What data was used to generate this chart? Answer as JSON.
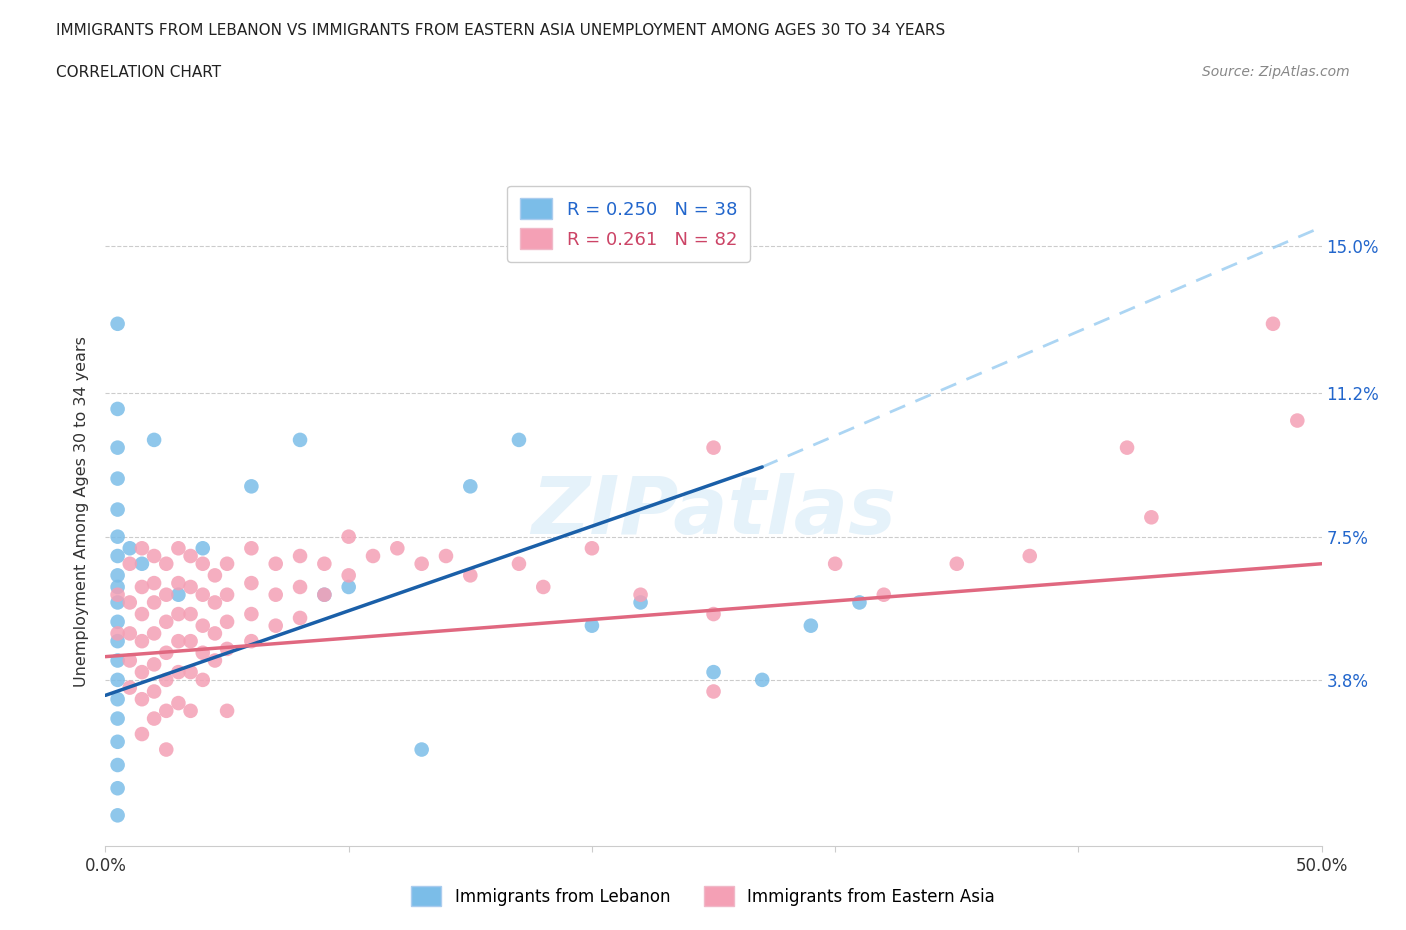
{
  "title_line1": "IMMIGRANTS FROM LEBANON VS IMMIGRANTS FROM EASTERN ASIA UNEMPLOYMENT AMONG AGES 30 TO 34 YEARS",
  "title_line2": "CORRELATION CHART",
  "source": "Source: ZipAtlas.com",
  "ylabel": "Unemployment Among Ages 30 to 34 years",
  "ytick_labels": [
    "3.8%",
    "7.5%",
    "11.2%",
    "15.0%"
  ],
  "ytick_values": [
    0.038,
    0.075,
    0.112,
    0.15
  ],
  "xmin": 0.0,
  "xmax": 0.5,
  "ymin": -0.005,
  "ymax": 0.168,
  "watermark": "ZIPatlas",
  "color_lebanon": "#7bbde8",
  "color_eastern": "#f4a0b5",
  "color_lebanon_line": "#1a5fa8",
  "color_eastern_line": "#e06880",
  "color_lebanon_dashed": "#90c8f0",
  "background": "#ffffff",
  "lebanon_scatter": [
    [
      0.005,
      0.13
    ],
    [
      0.005,
      0.108
    ],
    [
      0.005,
      0.098
    ],
    [
      0.005,
      0.09
    ],
    [
      0.005,
      0.082
    ],
    [
      0.005,
      0.075
    ],
    [
      0.005,
      0.07
    ],
    [
      0.005,
      0.065
    ],
    [
      0.005,
      0.062
    ],
    [
      0.005,
      0.058
    ],
    [
      0.005,
      0.053
    ],
    [
      0.005,
      0.048
    ],
    [
      0.005,
      0.043
    ],
    [
      0.005,
      0.038
    ],
    [
      0.005,
      0.033
    ],
    [
      0.005,
      0.028
    ],
    [
      0.005,
      0.022
    ],
    [
      0.005,
      0.016
    ],
    [
      0.005,
      0.01
    ],
    [
      0.005,
      0.003
    ],
    [
      0.01,
      0.072
    ],
    [
      0.015,
      0.068
    ],
    [
      0.02,
      0.1
    ],
    [
      0.03,
      0.06
    ],
    [
      0.04,
      0.072
    ],
    [
      0.06,
      0.088
    ],
    [
      0.08,
      0.1
    ],
    [
      0.09,
      0.06
    ],
    [
      0.1,
      0.062
    ],
    [
      0.13,
      0.02
    ],
    [
      0.15,
      0.088
    ],
    [
      0.17,
      0.1
    ],
    [
      0.2,
      0.052
    ],
    [
      0.22,
      0.058
    ],
    [
      0.25,
      0.04
    ],
    [
      0.27,
      0.038
    ],
    [
      0.29,
      0.052
    ],
    [
      0.31,
      0.058
    ]
  ],
  "eastern_scatter": [
    [
      0.005,
      0.06
    ],
    [
      0.005,
      0.05
    ],
    [
      0.01,
      0.068
    ],
    [
      0.01,
      0.058
    ],
    [
      0.01,
      0.05
    ],
    [
      0.01,
      0.043
    ],
    [
      0.01,
      0.036
    ],
    [
      0.015,
      0.072
    ],
    [
      0.015,
      0.062
    ],
    [
      0.015,
      0.055
    ],
    [
      0.015,
      0.048
    ],
    [
      0.015,
      0.04
    ],
    [
      0.015,
      0.033
    ],
    [
      0.015,
      0.024
    ],
    [
      0.02,
      0.07
    ],
    [
      0.02,
      0.063
    ],
    [
      0.02,
      0.058
    ],
    [
      0.02,
      0.05
    ],
    [
      0.02,
      0.042
    ],
    [
      0.02,
      0.035
    ],
    [
      0.02,
      0.028
    ],
    [
      0.025,
      0.068
    ],
    [
      0.025,
      0.06
    ],
    [
      0.025,
      0.053
    ],
    [
      0.025,
      0.045
    ],
    [
      0.025,
      0.038
    ],
    [
      0.025,
      0.03
    ],
    [
      0.025,
      0.02
    ],
    [
      0.03,
      0.072
    ],
    [
      0.03,
      0.063
    ],
    [
      0.03,
      0.055
    ],
    [
      0.03,
      0.048
    ],
    [
      0.03,
      0.04
    ],
    [
      0.03,
      0.032
    ],
    [
      0.035,
      0.07
    ],
    [
      0.035,
      0.062
    ],
    [
      0.035,
      0.055
    ],
    [
      0.035,
      0.048
    ],
    [
      0.035,
      0.04
    ],
    [
      0.035,
      0.03
    ],
    [
      0.04,
      0.068
    ],
    [
      0.04,
      0.06
    ],
    [
      0.04,
      0.052
    ],
    [
      0.04,
      0.045
    ],
    [
      0.04,
      0.038
    ],
    [
      0.045,
      0.065
    ],
    [
      0.045,
      0.058
    ],
    [
      0.045,
      0.05
    ],
    [
      0.045,
      0.043
    ],
    [
      0.05,
      0.068
    ],
    [
      0.05,
      0.06
    ],
    [
      0.05,
      0.053
    ],
    [
      0.05,
      0.046
    ],
    [
      0.05,
      0.03
    ],
    [
      0.06,
      0.072
    ],
    [
      0.06,
      0.063
    ],
    [
      0.06,
      0.055
    ],
    [
      0.06,
      0.048
    ],
    [
      0.07,
      0.068
    ],
    [
      0.07,
      0.06
    ],
    [
      0.07,
      0.052
    ],
    [
      0.08,
      0.07
    ],
    [
      0.08,
      0.062
    ],
    [
      0.08,
      0.054
    ],
    [
      0.09,
      0.068
    ],
    [
      0.09,
      0.06
    ],
    [
      0.1,
      0.075
    ],
    [
      0.1,
      0.065
    ],
    [
      0.11,
      0.07
    ],
    [
      0.12,
      0.072
    ],
    [
      0.13,
      0.068
    ],
    [
      0.14,
      0.07
    ],
    [
      0.15,
      0.065
    ],
    [
      0.17,
      0.068
    ],
    [
      0.18,
      0.062
    ],
    [
      0.2,
      0.072
    ],
    [
      0.22,
      0.06
    ],
    [
      0.25,
      0.098
    ],
    [
      0.25,
      0.055
    ],
    [
      0.25,
      0.035
    ],
    [
      0.3,
      0.068
    ],
    [
      0.32,
      0.06
    ],
    [
      0.35,
      0.068
    ],
    [
      0.38,
      0.07
    ],
    [
      0.42,
      0.098
    ],
    [
      0.43,
      0.08
    ],
    [
      0.48,
      0.13
    ],
    [
      0.49,
      0.105
    ]
  ],
  "lb_line_x0": 0.0,
  "lb_line_x_solid_end": 0.27,
  "lb_line_x1": 0.5,
  "lb_line_y0": 0.034,
  "lb_line_y_solid_end": 0.093,
  "lb_line_y1": 0.155,
  "ea_line_x0": 0.0,
  "ea_line_x1": 0.5,
  "ea_line_y0": 0.044,
  "ea_line_y1": 0.068
}
